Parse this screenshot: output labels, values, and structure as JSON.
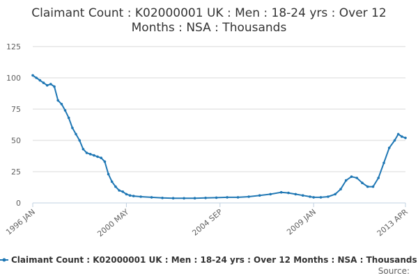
{
  "chart_data": {
    "type": "line",
    "title": "Claimant Count : K02000001 UK : Men : 18-24 yrs : Over 12 Months : NSA : Thousands",
    "title_lines": [
      "Claimant Count : K02000001 UK : Men : 18-24 yrs : Over 12",
      "Months : NSA : Thousands"
    ],
    "xlabel": "",
    "ylabel": "",
    "ylim": [
      0,
      125
    ],
    "y_ticks": [
      "0",
      "25",
      "50",
      "75",
      "100",
      "125"
    ],
    "x_ticks": [
      "1996 JAN",
      "2000 MAY",
      "2004 SEP",
      "2009 JAN",
      "2013 APR"
    ],
    "x_range": [
      "1996-01",
      "2013-04"
    ],
    "grid": true,
    "legend": "bottom",
    "series": [
      {
        "name": "Claimant Count : K02000001 UK : Men : 18-24 yrs : Over 12 Months : NSA : Thousands",
        "color": "#1f77b4",
        "points": [
          [
            "1996-01",
            102
          ],
          [
            "1996-03",
            100
          ],
          [
            "1996-05",
            98
          ],
          [
            "1996-07",
            96
          ],
          [
            "1996-09",
            94
          ],
          [
            "1996-11",
            95
          ],
          [
            "1997-01",
            93
          ],
          [
            "1997-03",
            82
          ],
          [
            "1997-05",
            79
          ],
          [
            "1997-07",
            74
          ],
          [
            "1997-09",
            68
          ],
          [
            "1997-11",
            60
          ],
          [
            "1998-01",
            55
          ],
          [
            "1998-03",
            50
          ],
          [
            "1998-05",
            43
          ],
          [
            "1998-07",
            40
          ],
          [
            "1998-09",
            39
          ],
          [
            "1998-11",
            38
          ],
          [
            "1999-01",
            37
          ],
          [
            "1999-03",
            36
          ],
          [
            "1999-05",
            33
          ],
          [
            "1999-07",
            23
          ],
          [
            "1999-09",
            17
          ],
          [
            "1999-11",
            13
          ],
          [
            "2000-01",
            10
          ],
          [
            "2000-03",
            9
          ],
          [
            "2000-05",
            7
          ],
          [
            "2000-07",
            6
          ],
          [
            "2000-09",
            5.5
          ],
          [
            "2001-01",
            5
          ],
          [
            "2001-07",
            4.5
          ],
          [
            "2002-01",
            4
          ],
          [
            "2002-07",
            3.8
          ],
          [
            "2003-01",
            3.7
          ],
          [
            "2003-07",
            3.8
          ],
          [
            "2004-01",
            4
          ],
          [
            "2004-07",
            4.2
          ],
          [
            "2005-01",
            4.5
          ],
          [
            "2005-07",
            4.5
          ],
          [
            "2006-01",
            5
          ],
          [
            "2006-07",
            6
          ],
          [
            "2007-01",
            7
          ],
          [
            "2007-07",
            8.5
          ],
          [
            "2007-11",
            8
          ],
          [
            "2008-03",
            7
          ],
          [
            "2008-07",
            6
          ],
          [
            "2008-11",
            5
          ],
          [
            "2009-01",
            4.5
          ],
          [
            "2009-05",
            4.5
          ],
          [
            "2009-09",
            5
          ],
          [
            "2010-01",
            7
          ],
          [
            "2010-04",
            11
          ],
          [
            "2010-07",
            18
          ],
          [
            "2010-10",
            21
          ],
          [
            "2011-01",
            20
          ],
          [
            "2011-04",
            16
          ],
          [
            "2011-07",
            13
          ],
          [
            "2011-10",
            13
          ],
          [
            "2012-01",
            20
          ],
          [
            "2012-04",
            32
          ],
          [
            "2012-07",
            44
          ],
          [
            "2012-10",
            50
          ],
          [
            "2012-12",
            55
          ],
          [
            "2013-02",
            53
          ],
          [
            "2013-04",
            52
          ]
        ]
      }
    ],
    "source_label": "Source:"
  }
}
